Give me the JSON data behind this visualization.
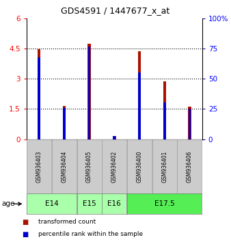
{
  "title": "GDS4591 / 1447677_x_at",
  "samples": [
    "GSM936403",
    "GSM936404",
    "GSM936405",
    "GSM936402",
    "GSM936400",
    "GSM936401",
    "GSM936406"
  ],
  "red_values": [
    4.45,
    1.65,
    4.72,
    0.15,
    4.35,
    2.85,
    1.62
  ],
  "blue_pct": [
    67.5,
    25.8,
    76.3,
    2.5,
    55.0,
    30.3,
    25.0
  ],
  "red_color": "#AA1100",
  "blue_color": "#0000CC",
  "ylim_left": [
    0,
    6
  ],
  "ylim_right": [
    0,
    100
  ],
  "yticks_left": [
    0,
    1.5,
    3,
    4.5,
    6
  ],
  "yticks_right": [
    0,
    25,
    50,
    75,
    100
  ],
  "bar_width": 0.12,
  "blue_bar_width": 0.1,
  "sample_bg_color": "#cccccc",
  "age_groups": [
    {
      "label": "E14",
      "start": 0,
      "end": 2,
      "color": "#aaffaa"
    },
    {
      "label": "E15",
      "start": 2,
      "end": 3,
      "color": "#aaffaa"
    },
    {
      "label": "E16",
      "start": 3,
      "end": 4,
      "color": "#aaffaa"
    },
    {
      "label": "E17.5",
      "start": 4,
      "end": 7,
      "color": "#55ee55"
    }
  ]
}
